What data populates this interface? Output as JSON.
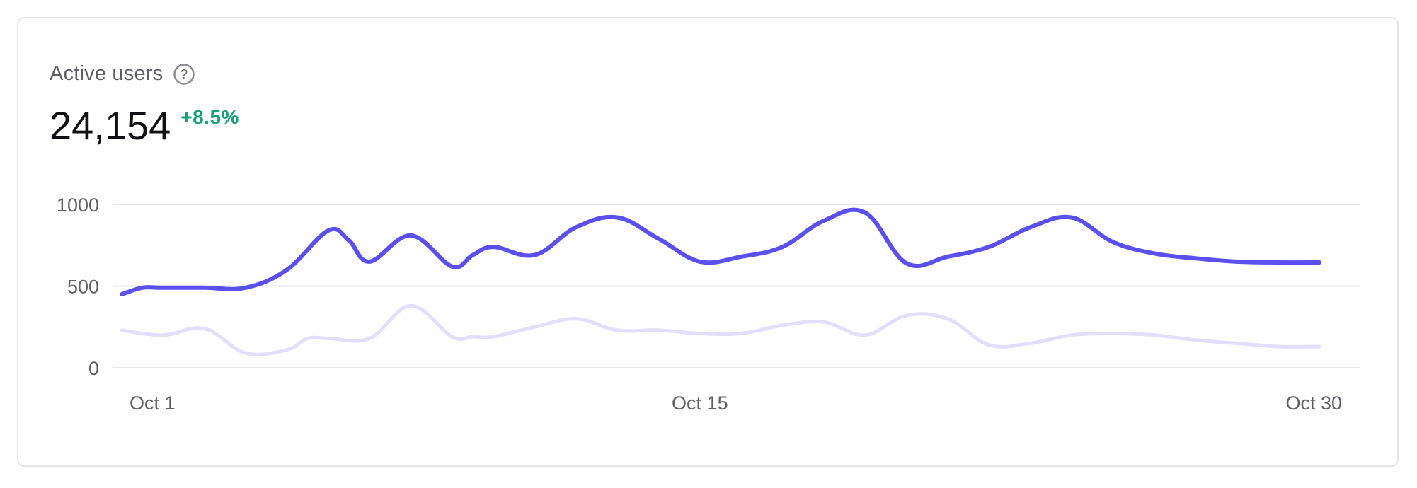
{
  "card": {
    "title": "Active users",
    "help_icon": "question-circle-icon",
    "value": "24,154",
    "change": "+8.5%"
  },
  "colors": {
    "primary_series": "#5b4ff0",
    "secondary_series": "#e2defc",
    "positive_change": "#15a37a",
    "grid": "#e6e6ea"
  },
  "chart_data": {
    "type": "line",
    "title": "Active users",
    "grid": true,
    "ylim": [
      0,
      1000
    ],
    "y_ticks": [
      {
        "value": 0,
        "label": "0"
      },
      {
        "value": 500,
        "label": "500"
      },
      {
        "value": 1000,
        "label": "1000"
      }
    ],
    "x_ticks": [
      {
        "x": 1,
        "label": "Oct 1"
      },
      {
        "x": 15,
        "label": "Oct 15"
      },
      {
        "x": 30,
        "label": "Oct 30"
      }
    ],
    "xlim": [
      1,
      30
    ],
    "series": [
      {
        "role": "primary",
        "x": [
          1,
          1.5,
          2,
          3,
          4,
          5,
          6,
          6.5,
          7,
          8,
          9,
          9.5,
          10,
          11,
          12,
          13,
          14,
          15,
          16,
          17,
          18,
          19,
          20,
          21,
          22,
          23,
          24,
          25,
          26,
          27,
          28,
          29,
          30
        ],
        "values": [
          450,
          490,
          490,
          490,
          490,
          600,
          840,
          780,
          650,
          810,
          620,
          690,
          740,
          690,
          860,
          920,
          790,
          650,
          680,
          740,
          900,
          950,
          640,
          680,
          740,
          860,
          920,
          770,
          700,
          670,
          650,
          645,
          645
        ]
      },
      {
        "role": "secondary",
        "x": [
          1,
          2,
          3,
          4,
          5,
          5.5,
          6,
          7,
          8,
          9,
          9.5,
          10,
          11,
          12,
          13,
          14,
          15,
          16,
          17,
          18,
          19,
          20,
          21,
          22,
          23,
          24,
          25,
          26,
          27,
          28,
          29,
          30
        ],
        "values": [
          230,
          200,
          240,
          90,
          110,
          180,
          180,
          180,
          380,
          190,
          190,
          190,
          250,
          300,
          230,
          230,
          210,
          210,
          260,
          280,
          200,
          320,
          300,
          140,
          150,
          200,
          210,
          200,
          170,
          150,
          130,
          130
        ]
      }
    ]
  }
}
